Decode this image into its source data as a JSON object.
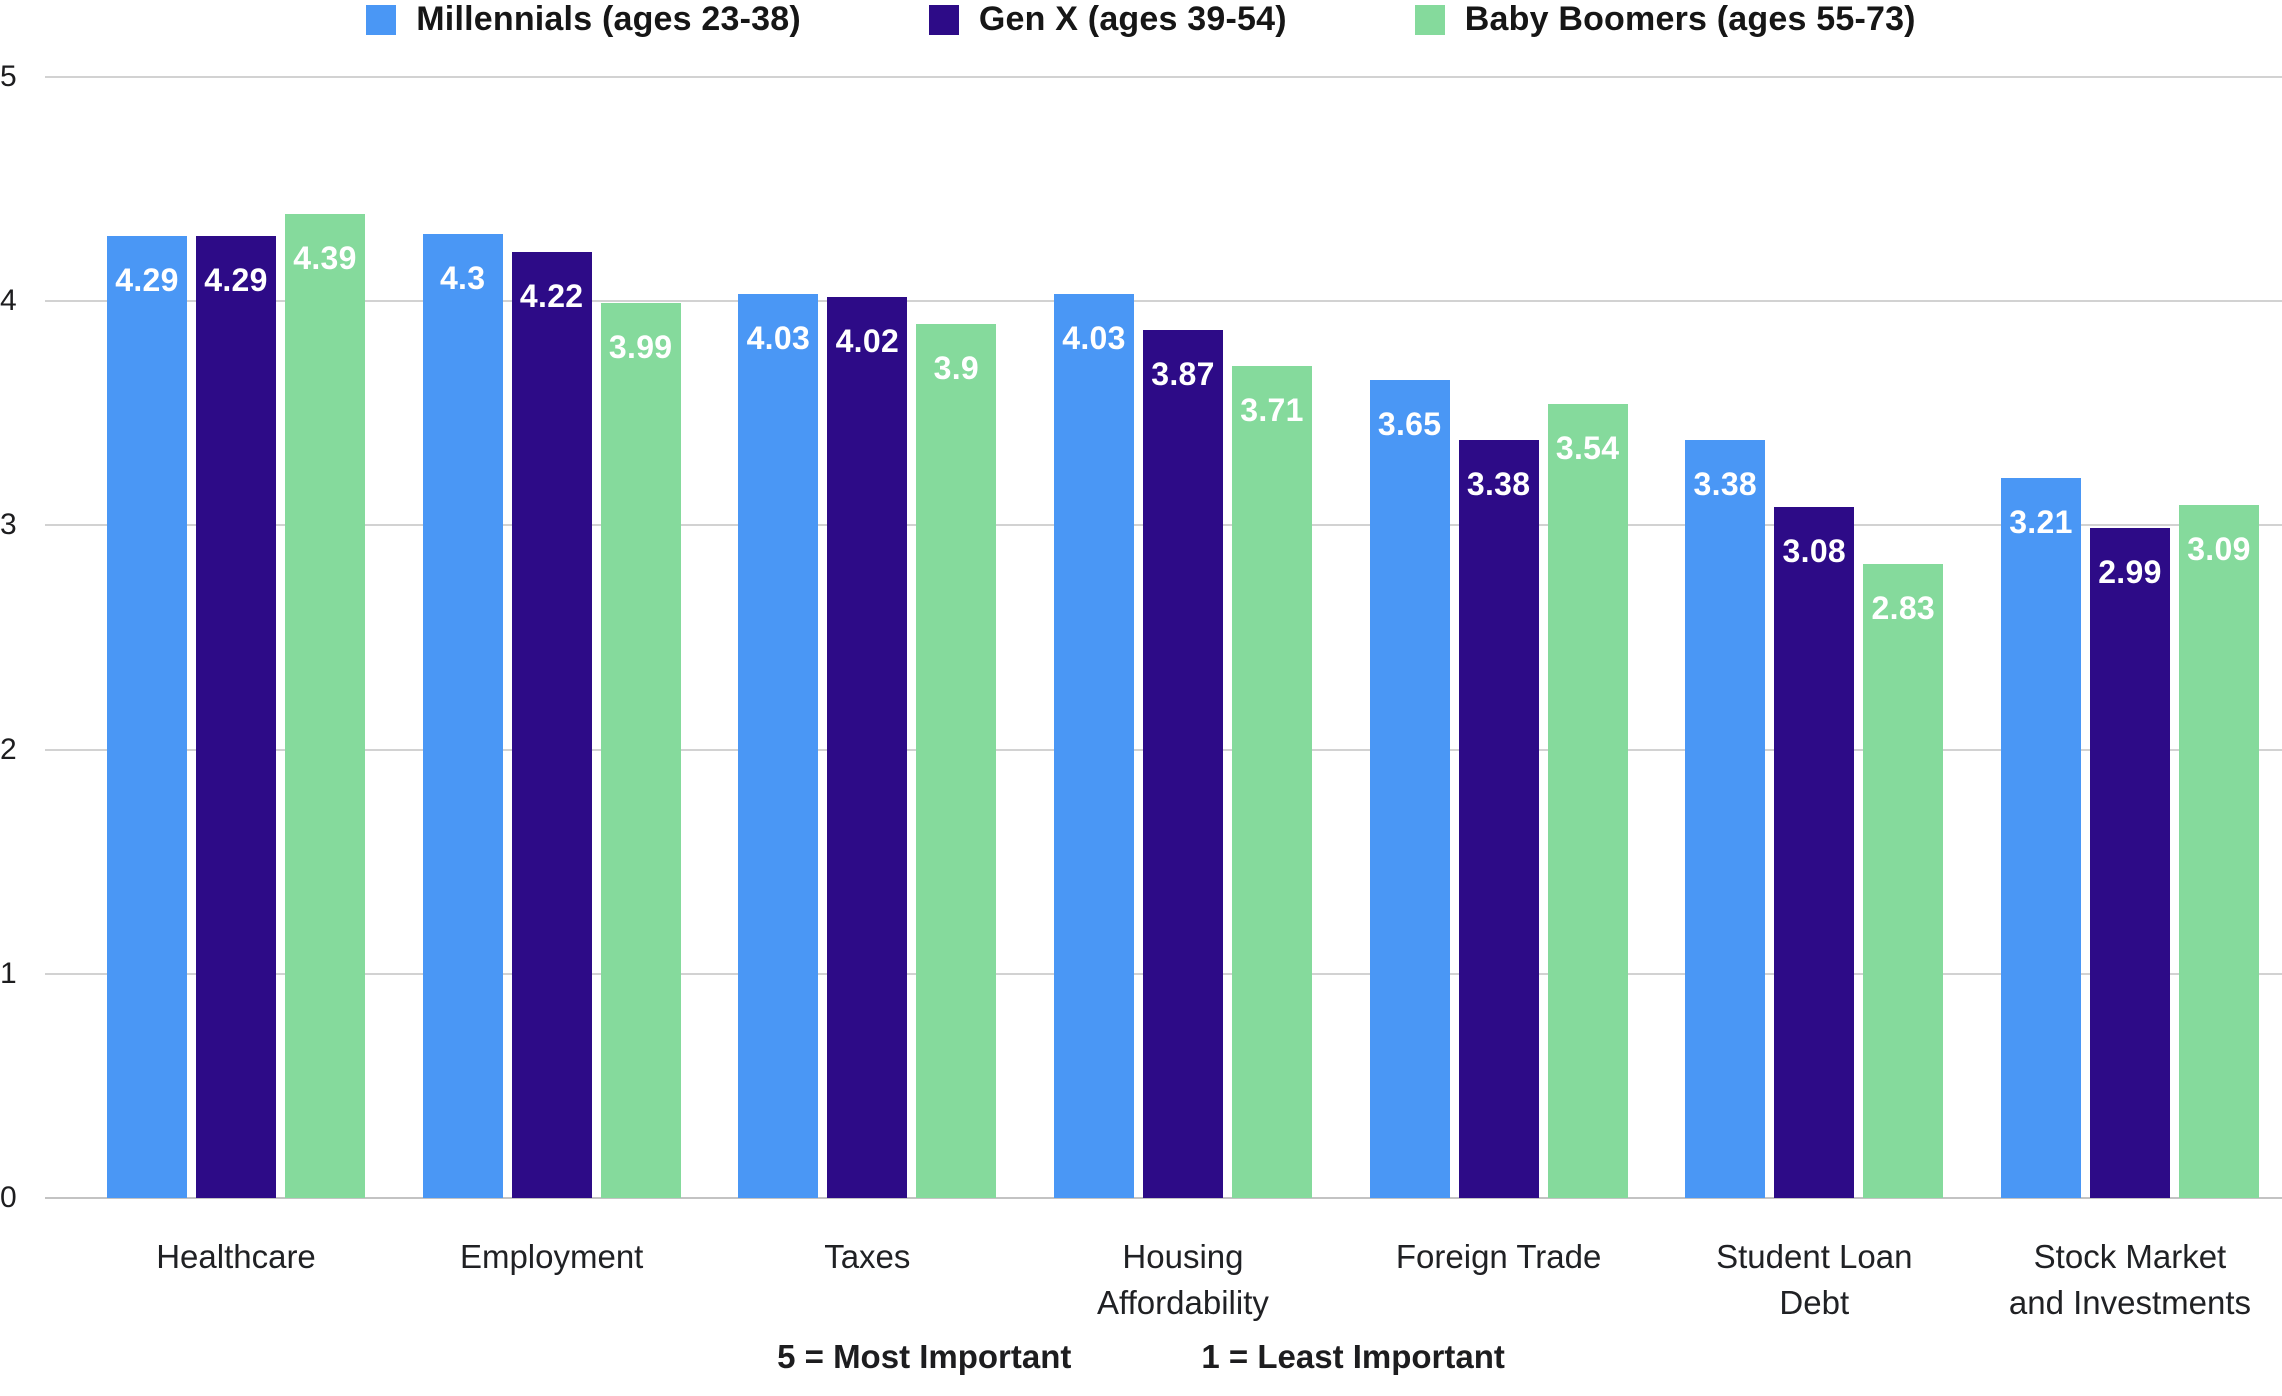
{
  "chart_data": {
    "type": "bar",
    "title": "",
    "categories": [
      "Healthcare",
      "Employment",
      "Taxes",
      "Housing Affordability",
      "Foreign Trade",
      "Student Loan Debt",
      "Stock Market and Investments"
    ],
    "category_label_lines": [
      [
        "Healthcare"
      ],
      [
        "Employment"
      ],
      [
        "Taxes"
      ],
      [
        "Housing",
        "Affordability"
      ],
      [
        "Foreign Trade"
      ],
      [
        "Student Loan",
        "Debt"
      ],
      [
        "Stock Market",
        "and Investments"
      ]
    ],
    "series": [
      {
        "name": "Millennials (ages 23-38)",
        "color": "#4A97F5",
        "values": [
          4.29,
          4.3,
          4.03,
          4.03,
          3.65,
          3.38,
          3.21
        ]
      },
      {
        "name": "Gen X (ages 39-54)",
        "color": "#2D0B87",
        "values": [
          4.29,
          4.22,
          4.02,
          3.87,
          3.38,
          3.08,
          2.99
        ]
      },
      {
        "name": "Baby Boomers (ages 55-73)",
        "color": "#85DA9C",
        "values": [
          4.39,
          3.99,
          3.9,
          3.71,
          3.54,
          2.83,
          3.09
        ]
      }
    ],
    "ylabel": "",
    "xlabel": "",
    "ylim": [
      0,
      5
    ],
    "y_ticks": [
      5,
      4,
      3,
      2,
      1,
      0
    ],
    "grid": true,
    "legend_position": "top",
    "value_labels_color": "#ffffff",
    "gridline_color": "#d2d2d2"
  },
  "footer": {
    "most_important_label": "5 = Most Important",
    "least_important_label": "1 = Least Important"
  }
}
